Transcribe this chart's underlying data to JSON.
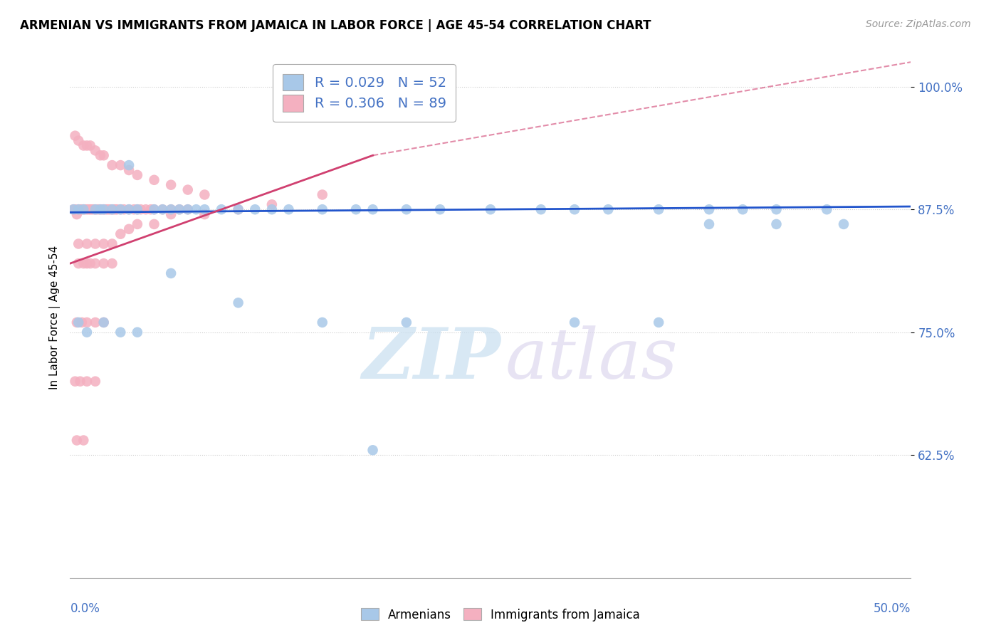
{
  "title": "ARMENIAN VS IMMIGRANTS FROM JAMAICA IN LABOR FORCE | AGE 45-54 CORRELATION CHART",
  "source": "Source: ZipAtlas.com",
  "ylabel": "In Labor Force | Age 45-54",
  "yticks": [
    "100.0%",
    "87.5%",
    "75.0%",
    "62.5%"
  ],
  "ytick_vals": [
    1.0,
    0.875,
    0.75,
    0.625
  ],
  "xlim": [
    0.0,
    0.5
  ],
  "ylim": [
    0.5,
    1.03
  ],
  "color_armenian": "#a8c8e8",
  "color_jamaica": "#f4b0c0",
  "color_trendline_blue": "#2255cc",
  "color_trendline_pink": "#d04070",
  "color_blue_text": "#4472c4",
  "blue_x": [
    0.002,
    0.005,
    0.008,
    0.015,
    0.018,
    0.02,
    0.025,
    0.03,
    0.035,
    0.04,
    0.05,
    0.055,
    0.06,
    0.065,
    0.07,
    0.075,
    0.08,
    0.09,
    0.1,
    0.11,
    0.12,
    0.13,
    0.15,
    0.17,
    0.18,
    0.2,
    0.22,
    0.25,
    0.28,
    0.3,
    0.32,
    0.35,
    0.38,
    0.4,
    0.42,
    0.45,
    0.38,
    0.42,
    0.46,
    0.035,
    0.06,
    0.1,
    0.15,
    0.2,
    0.3,
    0.35,
    0.005,
    0.01,
    0.02,
    0.03,
    0.04,
    0.18
  ],
  "blue_y": [
    0.875,
    0.875,
    0.875,
    0.875,
    0.875,
    0.875,
    0.875,
    0.875,
    0.875,
    0.875,
    0.875,
    0.875,
    0.875,
    0.875,
    0.875,
    0.875,
    0.875,
    0.875,
    0.875,
    0.875,
    0.875,
    0.875,
    0.875,
    0.875,
    0.875,
    0.875,
    0.875,
    0.875,
    0.875,
    0.875,
    0.875,
    0.875,
    0.875,
    0.875,
    0.875,
    0.875,
    0.86,
    0.86,
    0.86,
    0.92,
    0.81,
    0.78,
    0.76,
    0.76,
    0.76,
    0.76,
    0.76,
    0.75,
    0.76,
    0.75,
    0.75,
    0.63
  ],
  "pink_x": [
    0.002,
    0.003,
    0.004,
    0.005,
    0.006,
    0.007,
    0.008,
    0.009,
    0.01,
    0.011,
    0.012,
    0.013,
    0.014,
    0.015,
    0.016,
    0.017,
    0.018,
    0.019,
    0.02,
    0.021,
    0.022,
    0.023,
    0.024,
    0.025,
    0.026,
    0.027,
    0.028,
    0.03,
    0.032,
    0.035,
    0.038,
    0.04,
    0.042,
    0.045,
    0.048,
    0.05,
    0.055,
    0.06,
    0.065,
    0.07,
    0.003,
    0.005,
    0.008,
    0.01,
    0.012,
    0.015,
    0.018,
    0.02,
    0.025,
    0.03,
    0.035,
    0.04,
    0.05,
    0.06,
    0.07,
    0.08,
    0.005,
    0.008,
    0.01,
    0.012,
    0.015,
    0.02,
    0.025,
    0.004,
    0.007,
    0.01,
    0.015,
    0.02,
    0.003,
    0.006,
    0.01,
    0.015,
    0.004,
    0.008,
    0.005,
    0.01,
    0.015,
    0.02,
    0.025,
    0.03,
    0.035,
    0.04,
    0.05,
    0.06,
    0.08,
    0.1,
    0.12,
    0.15
  ],
  "pink_y": [
    0.875,
    0.875,
    0.87,
    0.875,
    0.875,
    0.875,
    0.875,
    0.875,
    0.875,
    0.875,
    0.875,
    0.875,
    0.875,
    0.875,
    0.875,
    0.875,
    0.875,
    0.875,
    0.875,
    0.875,
    0.875,
    0.875,
    0.875,
    0.875,
    0.875,
    0.875,
    0.875,
    0.875,
    0.875,
    0.875,
    0.875,
    0.875,
    0.875,
    0.875,
    0.875,
    0.875,
    0.875,
    0.875,
    0.875,
    0.875,
    0.95,
    0.945,
    0.94,
    0.94,
    0.94,
    0.935,
    0.93,
    0.93,
    0.92,
    0.92,
    0.915,
    0.91,
    0.905,
    0.9,
    0.895,
    0.89,
    0.82,
    0.82,
    0.82,
    0.82,
    0.82,
    0.82,
    0.82,
    0.76,
    0.76,
    0.76,
    0.76,
    0.76,
    0.7,
    0.7,
    0.7,
    0.7,
    0.64,
    0.64,
    0.84,
    0.84,
    0.84,
    0.84,
    0.84,
    0.85,
    0.855,
    0.86,
    0.86,
    0.87,
    0.87,
    0.875,
    0.88,
    0.89
  ]
}
